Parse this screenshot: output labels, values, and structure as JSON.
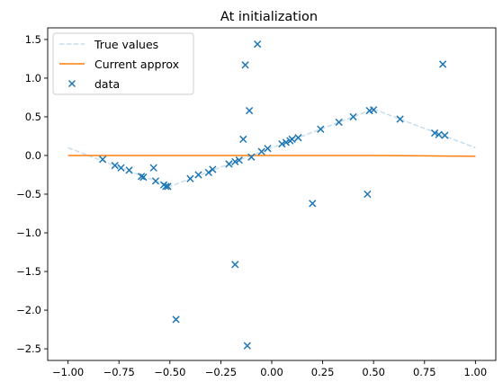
{
  "chart_data": {
    "type": "scatter",
    "title": "At initialization",
    "xlabel": "",
    "ylabel": "",
    "xlim": [
      -1.1,
      1.1
    ],
    "ylim": [
      -2.65,
      1.65
    ],
    "xticks": [
      -1.0,
      -0.75,
      -0.5,
      -0.25,
      0.0,
      0.25,
      0.5,
      0.75,
      1.0
    ],
    "xtick_labels": [
      "−1.00",
      "−0.75",
      "−0.50",
      "−0.25",
      "0.00",
      "0.25",
      "0.50",
      "0.75",
      "1.00"
    ],
    "yticks": [
      1.5,
      1.0,
      0.5,
      0.0,
      -0.5,
      -1.0,
      -1.5,
      -2.0,
      -2.5
    ],
    "ytick_labels": [
      "1.5",
      "1.0",
      "0.5",
      "0.0",
      "−0.5",
      "−1.0",
      "−1.5",
      "−2.0",
      "−2.5"
    ],
    "grid": false,
    "legend_position": "top-left",
    "series": [
      {
        "name": "True values",
        "kind": "line",
        "style": "dashed",
        "color": "#1f77b4",
        "opacity": 0.25,
        "x": [
          -1.0,
          -0.5,
          0.5,
          1.0
        ],
        "y": [
          0.1,
          -0.4,
          0.6,
          0.1
        ]
      },
      {
        "name": "Current approx",
        "kind": "line",
        "style": "solid",
        "color": "#ff7f0e",
        "x": [
          -1.0,
          -0.75,
          -0.5,
          -0.25,
          0.0,
          0.25,
          0.5,
          0.75,
          1.0
        ],
        "y": [
          0.0,
          0.0,
          0.0,
          0.0,
          0.0,
          0.0,
          0.0,
          -0.005,
          -0.01
        ]
      },
      {
        "name": "data",
        "kind": "scatter",
        "marker": "x",
        "color": "#1f77b4",
        "points": [
          [
            -0.83,
            -0.05
          ],
          [
            -0.77,
            -0.13
          ],
          [
            -0.74,
            -0.16
          ],
          [
            -0.7,
            -0.19
          ],
          [
            -0.64,
            -0.27
          ],
          [
            -0.63,
            -0.28
          ],
          [
            -0.58,
            -0.16
          ],
          [
            -0.57,
            -0.33
          ],
          [
            -0.53,
            -0.38
          ],
          [
            -0.52,
            -0.4
          ],
          [
            -0.51,
            -0.4
          ],
          [
            -0.47,
            -2.12
          ],
          [
            -0.4,
            -0.3
          ],
          [
            -0.36,
            -0.25
          ],
          [
            -0.31,
            -0.22
          ],
          [
            -0.29,
            -0.18
          ],
          [
            -0.21,
            -0.11
          ],
          [
            -0.18,
            -1.41
          ],
          [
            -0.18,
            -0.08
          ],
          [
            -0.16,
            -0.06
          ],
          [
            -0.14,
            0.21
          ],
          [
            -0.13,
            1.17
          ],
          [
            -0.12,
            -2.46
          ],
          [
            -0.11,
            0.58
          ],
          [
            -0.1,
            -0.02
          ],
          [
            -0.07,
            1.44
          ],
          [
            -0.05,
            0.05
          ],
          [
            -0.02,
            0.09
          ],
          [
            0.05,
            0.15
          ],
          [
            0.07,
            0.17
          ],
          [
            0.09,
            0.19
          ],
          [
            0.1,
            0.21
          ],
          [
            0.13,
            0.23
          ],
          [
            0.2,
            -0.62
          ],
          [
            0.24,
            0.34
          ],
          [
            0.33,
            0.43
          ],
          [
            0.4,
            0.5
          ],
          [
            0.47,
            -0.5
          ],
          [
            0.48,
            0.58
          ],
          [
            0.5,
            0.59
          ],
          [
            0.63,
            0.47
          ],
          [
            0.8,
            0.29
          ],
          [
            0.82,
            0.27
          ],
          [
            0.84,
            1.18
          ],
          [
            0.85,
            0.26
          ]
        ]
      }
    ]
  }
}
